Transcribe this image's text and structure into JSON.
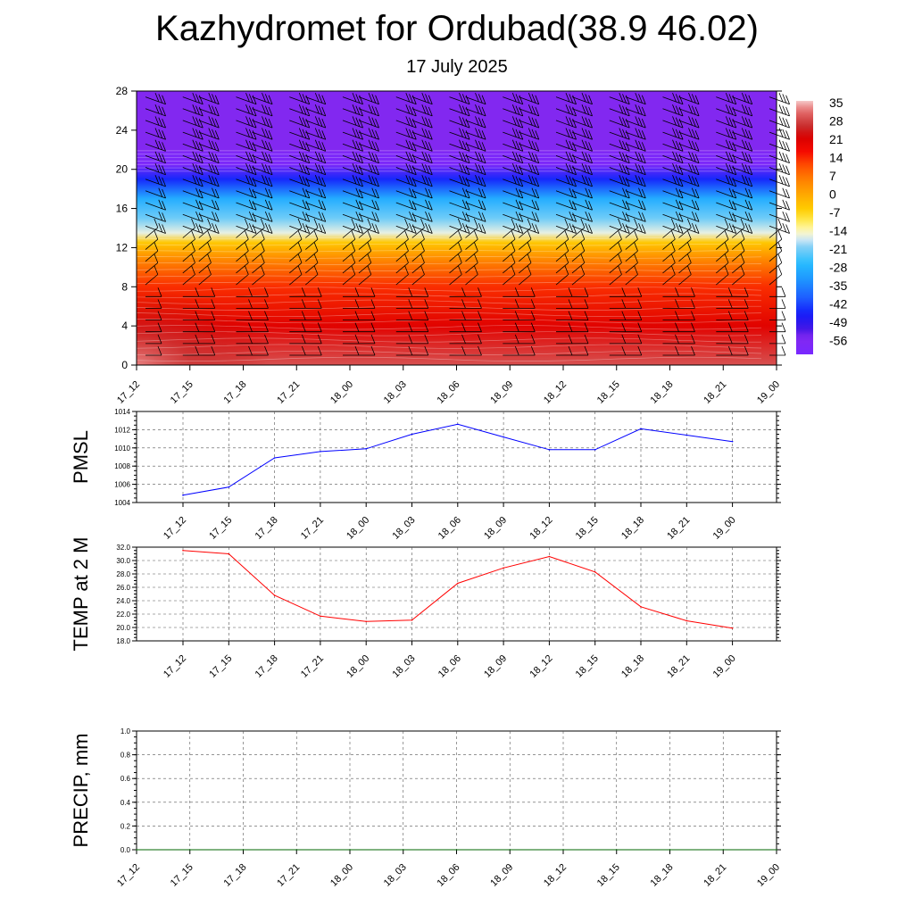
{
  "title": "Kazhydromet for Ordubad(38.9 46.02)",
  "subtitle": "17 July 2025",
  "chart_data": [
    {
      "id": "cross-section",
      "type": "heatmap",
      "ylim": [
        0,
        28
      ],
      "y_ticks": [
        0,
        4,
        8,
        12,
        16,
        20,
        24,
        28
      ],
      "x_ticks": [
        "17_12",
        "17_15",
        "17_18",
        "17_21",
        "18_00",
        "18_03",
        "18_06",
        "18_09",
        "18_12",
        "18_15",
        "18_18",
        "18_21",
        "19_00"
      ],
      "colorbar": {
        "labels": [
          "35",
          "28",
          "21",
          "14",
          "7",
          "0",
          "-7",
          "-14",
          "-21",
          "-28",
          "-35",
          "-42",
          "-49",
          "-56"
        ],
        "min": -63,
        "max": 42
      },
      "temperature_profile": [
        {
          "height": 0,
          "value": 35
        },
        {
          "height": 4,
          "value": 25
        },
        {
          "height": 8,
          "value": 18
        },
        {
          "height": 11,
          "value": 7
        },
        {
          "height": 12.5,
          "value": -2
        },
        {
          "height": 13.5,
          "value": -14
        },
        {
          "height": 15,
          "value": -20
        },
        {
          "height": 17,
          "value": -28
        },
        {
          "height": 19,
          "value": -45
        },
        {
          "height": 20.5,
          "value": -60
        },
        {
          "height": 21.5,
          "value": -60
        },
        {
          "height": 22,
          "value": -56
        },
        {
          "height": 28,
          "value": -56
        }
      ]
    },
    {
      "id": "pmsl",
      "type": "line",
      "ylabel": "PMSL",
      "ylim": [
        1004,
        1014
      ],
      "y_ticks": [
        "1004",
        "1006",
        "1008",
        "1010",
        "1012",
        "1014"
      ],
      "categories": [
        "17_12",
        "17_15",
        "17_18",
        "17_21",
        "18_00",
        "18_03",
        "18_06",
        "18_09",
        "18_12",
        "18_15",
        "18_18",
        "18_21",
        "19_00"
      ],
      "values": [
        1004.8,
        1005.7,
        1008.9,
        1009.6,
        1009.9,
        1011.5,
        1012.6,
        1011.2,
        1009.8,
        1009.8,
        1012.1,
        1011.4,
        1010.7
      ],
      "color": "#0000ff"
    },
    {
      "id": "temp2m",
      "type": "line",
      "ylabel": "TEMP at 2 M",
      "ylim": [
        18,
        32
      ],
      "y_ticks": [
        "18.0",
        "20.0",
        "22.0",
        "24.0",
        "26.0",
        "28.0",
        "30.0",
        "32.0"
      ],
      "categories": [
        "17_12",
        "17_15",
        "17_18",
        "17_21",
        "18_00",
        "18_03",
        "18_06",
        "18_09",
        "18_12",
        "18_15",
        "18_18",
        "18_21",
        "19_00"
      ],
      "values": [
        31.5,
        31.0,
        24.8,
        21.7,
        20.9,
        21.1,
        26.6,
        28.9,
        30.6,
        28.3,
        23.1,
        21.0,
        19.9
      ],
      "color": "#ff0000"
    },
    {
      "id": "precip",
      "type": "line",
      "ylabel": "PRECIP, mm",
      "ylim": [
        0,
        1
      ],
      "y_ticks": [
        "0.0",
        "0.2",
        "0.4",
        "0.6",
        "0.8",
        "1.0"
      ],
      "categories": [
        "17_12",
        "17_15",
        "17_18",
        "17_21",
        "18_00",
        "18_03",
        "18_06",
        "18_09",
        "18_12",
        "18_15",
        "18_18",
        "18_21",
        "19_00"
      ],
      "values": [
        0,
        0,
        0,
        0,
        0,
        0,
        0,
        0,
        0,
        0,
        0,
        0,
        0
      ],
      "color": "#006400"
    }
  ]
}
